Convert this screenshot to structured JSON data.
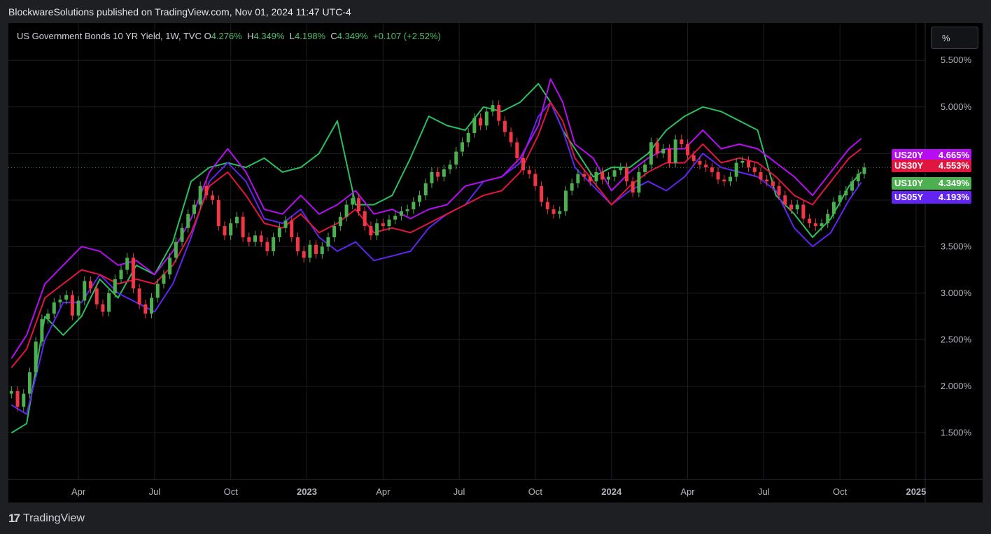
{
  "header": {
    "published": "BlockwareSolutions published on TradingView.com, Nov 01, 2024 11:47 UTC-4"
  },
  "legend": {
    "symbol": "US Government Bonds 10 YR Yield, 1W, TVC",
    "o_label": "O",
    "o_value": "4.276%",
    "h_label": "H",
    "h_value": "4.349%",
    "l_label": "L",
    "l_value": "4.198%",
    "c_label": "C",
    "c_value": "4.349%",
    "change": "+0.107 (+2.52%)"
  },
  "unit_button": "%",
  "footer": {
    "logo_mark": "17",
    "brand": "TradingView"
  },
  "colors": {
    "up": "#4caf50",
    "down": "#f23645",
    "us20y": "#b60df2",
    "us30y": "#e0163f",
    "us10y": "#4caf50",
    "us05y": "#6224f2",
    "green_line": "#2bbf5e"
  },
  "chart_data": {
    "type": "line",
    "ylim": [
      1.0,
      5.9
    ],
    "yticks": [
      "5.500%",
      "5.000%",
      "4.500%",
      "4.000%",
      "3.500%",
      "3.000%",
      "2.500%",
      "2.000%",
      "1.500%"
    ],
    "ytick_values": [
      5.5,
      5.0,
      4.5,
      4.0,
      3.5,
      3.0,
      2.5,
      2.0,
      1.5
    ],
    "xticks": [
      "Apr",
      "Jul",
      "Oct",
      "2023",
      "Apr",
      "Jul",
      "Oct",
      "2024",
      "Apr",
      "Jul",
      "Oct",
      "2025"
    ],
    "xtick_values": [
      2022.25,
      2022.5,
      2022.75,
      2023.0,
      2023.25,
      2023.5,
      2023.75,
      2024.0,
      2024.25,
      2024.5,
      2024.75,
      2025.0
    ],
    "x_bold": [
      "2023",
      "2024",
      "2025"
    ],
    "xlim": [
      2022.02,
      2025.03
    ],
    "last_price_line": 4.349,
    "series": [
      {
        "name": "US20Y",
        "label_value": "4.665%",
        "color": "#b60df2",
        "x": [
          2022.03,
          2022.08,
          2022.14,
          2022.2,
          2022.26,
          2022.32,
          2022.38,
          2022.44,
          2022.5,
          2022.56,
          2022.62,
          2022.68,
          2022.74,
          2022.8,
          2022.86,
          2022.92,
          2022.98,
          2023.04,
          2023.1,
          2023.16,
          2023.22,
          2023.28,
          2023.34,
          2023.4,
          2023.46,
          2023.52,
          2023.58,
          2023.64,
          2023.7,
          2023.76,
          2023.8,
          2023.84,
          2023.88,
          2023.94,
          2024.0,
          2024.06,
          2024.12,
          2024.18,
          2024.24,
          2024.3,
          2024.36,
          2024.42,
          2024.48,
          2024.54,
          2024.6,
          2024.66,
          2024.72,
          2024.78,
          2024.82
        ],
        "values": [
          2.3,
          2.55,
          3.1,
          3.3,
          3.5,
          3.45,
          3.3,
          3.35,
          3.2,
          3.45,
          3.8,
          4.3,
          4.55,
          4.3,
          3.9,
          3.85,
          4.05,
          3.85,
          3.95,
          4.1,
          3.85,
          3.9,
          3.8,
          3.9,
          3.95,
          4.15,
          4.2,
          4.25,
          4.45,
          4.8,
          5.3,
          5.05,
          4.6,
          4.45,
          4.1,
          4.3,
          4.45,
          4.55,
          4.55,
          4.75,
          4.55,
          4.6,
          4.55,
          4.4,
          4.25,
          4.05,
          4.3,
          4.55,
          4.66
        ]
      },
      {
        "name": "US30Y",
        "label_value": "4.553%",
        "color": "#e0163f",
        "x": [
          2022.03,
          2022.08,
          2022.14,
          2022.2,
          2022.26,
          2022.32,
          2022.38,
          2022.44,
          2022.5,
          2022.56,
          2022.62,
          2022.68,
          2022.74,
          2022.8,
          2022.86,
          2022.92,
          2022.98,
          2023.04,
          2023.1,
          2023.16,
          2023.22,
          2023.28,
          2023.34,
          2023.4,
          2023.46,
          2023.52,
          2023.58,
          2023.64,
          2023.7,
          2023.76,
          2023.8,
          2023.84,
          2023.88,
          2023.94,
          2024.0,
          2024.06,
          2024.12,
          2024.18,
          2024.24,
          2024.3,
          2024.36,
          2024.42,
          2024.48,
          2024.54,
          2024.6,
          2024.66,
          2024.72,
          2024.78,
          2024.82
        ],
        "values": [
          2.2,
          2.4,
          2.95,
          3.1,
          3.25,
          3.2,
          3.1,
          3.15,
          3.1,
          3.3,
          3.65,
          4.15,
          4.3,
          4.05,
          3.75,
          3.7,
          3.85,
          3.65,
          3.75,
          3.9,
          3.65,
          3.7,
          3.65,
          3.75,
          3.85,
          3.95,
          4.05,
          4.1,
          4.3,
          4.7,
          5.05,
          4.85,
          4.45,
          4.2,
          3.95,
          4.15,
          4.3,
          4.4,
          4.4,
          4.6,
          4.4,
          4.45,
          4.4,
          4.25,
          4.05,
          3.95,
          4.2,
          4.45,
          4.55
        ]
      },
      {
        "name": "US05Y",
        "label_value": "4.193%",
        "color": "#6224f2",
        "x": [
          2022.03,
          2022.08,
          2022.14,
          2022.2,
          2022.26,
          2022.32,
          2022.38,
          2022.44,
          2022.5,
          2022.56,
          2022.62,
          2022.68,
          2022.74,
          2022.8,
          2022.86,
          2022.92,
          2022.98,
          2023.04,
          2023.1,
          2023.16,
          2023.22,
          2023.28,
          2023.34,
          2023.4,
          2023.46,
          2023.52,
          2023.58,
          2023.64,
          2023.7,
          2023.76,
          2023.8,
          2023.84,
          2023.88,
          2023.94,
          2024.0,
          2024.06,
          2024.12,
          2024.18,
          2024.24,
          2024.3,
          2024.36,
          2024.42,
          2024.48,
          2024.54,
          2024.6,
          2024.66,
          2024.72,
          2024.78,
          2024.82
        ],
        "values": [
          1.8,
          1.7,
          2.5,
          2.9,
          2.9,
          3.2,
          3.0,
          2.9,
          2.8,
          3.1,
          3.6,
          4.2,
          4.4,
          4.2,
          3.8,
          3.75,
          3.9,
          3.6,
          3.45,
          3.55,
          3.35,
          3.4,
          3.45,
          3.7,
          3.85,
          3.95,
          4.2,
          4.25,
          4.4,
          4.9,
          5.05,
          4.75,
          4.35,
          4.15,
          3.95,
          4.1,
          4.2,
          4.1,
          4.25,
          4.5,
          4.35,
          4.3,
          4.25,
          4.1,
          3.7,
          3.5,
          3.65,
          4.0,
          4.19
        ]
      },
      {
        "name": "US10Y",
        "label_value": "4.349%",
        "color": "#4caf50",
        "x": [
          2022.03,
          2022.08,
          2022.14,
          2022.2,
          2022.26,
          2022.32,
          2022.38,
          2022.44,
          2022.5,
          2022.56,
          2022.62,
          2022.68,
          2022.74,
          2022.8,
          2022.86,
          2022.92,
          2022.98,
          2023.04,
          2023.1,
          2023.16,
          2023.22,
          2023.28,
          2023.34,
          2023.4,
          2023.46,
          2023.52,
          2023.58,
          2023.64,
          2023.7,
          2023.76,
          2023.8,
          2023.84,
          2023.88,
          2023.94,
          2024.0,
          2024.06,
          2024.12,
          2024.18,
          2024.24,
          2024.3,
          2024.36,
          2024.42,
          2024.48,
          2024.54,
          2024.6,
          2024.66,
          2024.72,
          2024.78,
          2024.82
        ],
        "values": [
          1.9,
          1.95,
          2.6,
          2.95,
          3.0,
          3.2,
          2.95,
          2.7,
          2.9,
          3.15,
          3.6,
          4.1,
          4.2,
          3.9,
          3.65,
          3.5,
          3.7,
          3.5,
          3.5,
          3.6,
          3.4,
          3.45,
          3.45,
          3.7,
          3.8,
          3.85,
          4.1,
          4.2,
          4.35,
          4.8,
          5.0,
          4.7,
          4.3,
          4.0,
          3.85,
          4.05,
          4.2,
          4.1,
          4.2,
          4.55,
          4.4,
          4.3,
          4.25,
          4.1,
          3.8,
          3.65,
          3.9,
          4.2,
          4.35
        ]
      },
      {
        "name": "",
        "color": "#2bbf5e",
        "x": [
          2022.03,
          2022.08,
          2022.14,
          2022.2,
          2022.26,
          2022.32,
          2022.38,
          2022.44,
          2022.5,
          2022.56,
          2022.62,
          2022.68,
          2022.74,
          2022.8,
          2022.86,
          2022.92,
          2022.98,
          2023.04,
          2023.1,
          2023.16,
          2023.22,
          2023.28,
          2023.34,
          2023.4,
          2023.46,
          2023.52,
          2023.58,
          2023.64,
          2023.7,
          2023.76,
          2023.8,
          2023.84,
          2023.88,
          2023.94,
          2024.0,
          2024.06,
          2024.12,
          2024.18,
          2024.24,
          2024.3,
          2024.36,
          2024.42,
          2024.48,
          2024.54,
          2024.6,
          2024.66,
          2024.72,
          2024.78,
          2024.82
        ],
        "values": [
          1.5,
          1.6,
          2.75,
          2.55,
          2.75,
          3.15,
          2.95,
          3.3,
          3.2,
          3.55,
          4.2,
          4.35,
          4.4,
          4.35,
          4.45,
          4.3,
          4.35,
          4.5,
          4.85,
          3.95,
          3.95,
          4.05,
          4.45,
          4.9,
          4.8,
          4.75,
          5.0,
          4.95,
          5.05,
          5.25,
          5.05,
          4.75,
          4.55,
          4.25,
          4.35,
          4.35,
          4.5,
          4.75,
          4.9,
          5.0,
          4.95,
          4.85,
          4.75,
          4.05,
          3.85,
          3.6,
          3.8,
          4.15,
          4.3
        ]
      }
    ],
    "candles": {
      "name": "US10Y",
      "x": [
        2022.03,
        2022.05,
        2022.07,
        2022.09,
        2022.11,
        2022.13,
        2022.15,
        2022.17,
        2022.19,
        2022.21,
        2022.23,
        2022.25,
        2022.27,
        2022.29,
        2022.31,
        2022.33,
        2022.35,
        2022.37,
        2022.39,
        2022.41,
        2022.43,
        2022.45,
        2022.47,
        2022.49,
        2022.51,
        2022.53,
        2022.55,
        2022.57,
        2022.59,
        2022.61,
        2022.63,
        2022.65,
        2022.67,
        2022.69,
        2022.71,
        2022.73,
        2022.75,
        2022.77,
        2022.79,
        2022.81,
        2022.83,
        2022.85,
        2022.87,
        2022.89,
        2022.91,
        2022.93,
        2022.95,
        2022.97,
        2022.99,
        2023.01,
        2023.03,
        2023.05,
        2023.07,
        2023.09,
        2023.11,
        2023.13,
        2023.15,
        2023.17,
        2023.19,
        2023.21,
        2023.23,
        2023.25,
        2023.27,
        2023.29,
        2023.31,
        2023.33,
        2023.35,
        2023.37,
        2023.39,
        2023.41,
        2023.43,
        2023.45,
        2023.47,
        2023.49,
        2023.51,
        2023.53,
        2023.55,
        2023.57,
        2023.59,
        2023.61,
        2023.63,
        2023.65,
        2023.67,
        2023.69,
        2023.71,
        2023.73,
        2023.75,
        2023.77,
        2023.79,
        2023.81,
        2023.83,
        2023.85,
        2023.87,
        2023.89,
        2023.91,
        2023.93,
        2023.95,
        2023.97,
        2023.99,
        2024.01,
        2024.03,
        2024.05,
        2024.07,
        2024.09,
        2024.11,
        2024.13,
        2024.15,
        2024.17,
        2024.19,
        2024.21,
        2024.23,
        2024.25,
        2024.27,
        2024.29,
        2024.31,
        2024.33,
        2024.35,
        2024.37,
        2024.39,
        2024.41,
        2024.43,
        2024.45,
        2024.47,
        2024.49,
        2024.51,
        2024.53,
        2024.55,
        2024.57,
        2024.59,
        2024.61,
        2024.63,
        2024.65,
        2024.67,
        2024.69,
        2024.71,
        2024.73,
        2024.75,
        2024.77,
        2024.79,
        2024.81,
        2024.83
      ],
      "close": [
        1.95,
        1.78,
        1.92,
        2.15,
        2.48,
        2.72,
        2.78,
        2.9,
        2.93,
        2.98,
        2.76,
        2.92,
        3.13,
        3.05,
        2.88,
        2.8,
        3.0,
        3.15,
        3.25,
        3.38,
        3.05,
        2.88,
        2.78,
        2.95,
        3.1,
        3.2,
        3.38,
        3.55,
        3.7,
        3.85,
        3.95,
        4.15,
        4.05,
        4.0,
        3.72,
        3.62,
        3.75,
        3.82,
        3.6,
        3.55,
        3.62,
        3.55,
        3.45,
        3.6,
        3.7,
        3.78,
        3.6,
        3.45,
        3.38,
        3.52,
        3.42,
        3.5,
        3.6,
        3.72,
        3.82,
        3.95,
        4.02,
        3.88,
        3.72,
        3.62,
        3.75,
        3.72,
        3.79,
        3.83,
        3.88,
        3.9,
        3.98,
        4.05,
        4.18,
        4.3,
        4.25,
        4.33,
        4.38,
        4.52,
        4.62,
        4.72,
        4.88,
        4.8,
        4.95,
        5.02,
        4.85,
        4.73,
        4.62,
        4.45,
        4.32,
        4.28,
        4.15,
        3.98,
        3.9,
        3.85,
        3.88,
        4.1,
        4.18,
        4.28,
        4.25,
        4.2,
        4.3,
        4.22,
        4.25,
        4.32,
        4.35,
        4.2,
        4.08,
        4.3,
        4.38,
        4.62,
        4.5,
        4.55,
        4.4,
        4.65,
        4.6,
        4.48,
        4.42,
        4.38,
        4.35,
        4.3,
        4.22,
        4.2,
        4.25,
        4.4,
        4.42,
        4.35,
        4.3,
        4.22,
        4.2,
        4.15,
        4.05,
        3.95,
        3.9,
        3.95,
        3.8,
        3.75,
        3.72,
        3.75,
        3.85,
        3.98,
        4.05,
        4.1,
        4.2,
        4.28,
        4.35
      ],
      "up_down": []
    }
  }
}
